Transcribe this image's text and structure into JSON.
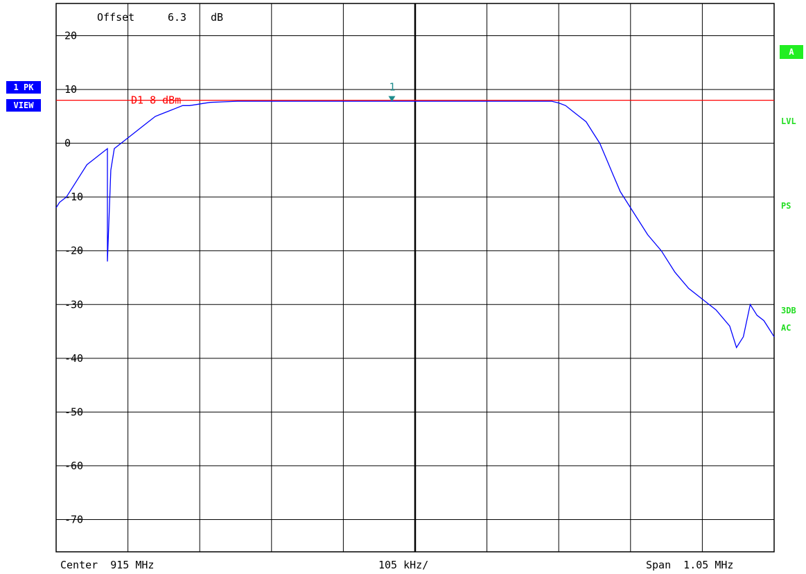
{
  "header": {
    "offset_label": "Offset",
    "offset_value": "6.3",
    "offset_unit": "dB"
  },
  "left_tags": {
    "trace": "1 PK",
    "mode": "VIEW"
  },
  "right_flags": {
    "a": "A",
    "lvl": "LVL",
    "ps": "PS",
    "db3": "3DB",
    "ac": "AC"
  },
  "footer": {
    "center": "Center  915 MHz",
    "per_div": "105 kHz/",
    "span": "Span  1.05 MHz"
  },
  "colors": {
    "trace": "#0000ff",
    "display_line": "#ff0000",
    "marker": "#1e8c8c",
    "flag_green": "#22dd22",
    "tag_blue": "#0000ff"
  },
  "chart_data": {
    "type": "line",
    "title": "",
    "xlabel": "",
    "ylabel": "",
    "center_mhz": 915,
    "span_mhz": 1.05,
    "xlim_mhz": [
      914.475,
      915.525
    ],
    "ylim": [
      -76,
      26
    ],
    "y_ticks": [
      20,
      10,
      0,
      -10,
      -20,
      -30,
      -40,
      -50,
      -60,
      -70
    ],
    "y_tick_labels": [
      "20",
      "10",
      "0",
      "-10",
      "-20",
      "-30",
      "-40",
      "-50",
      "-60",
      "-70"
    ],
    "grid": true,
    "display_line": {
      "label": "D1 8 dBm",
      "value": 8
    },
    "marker": {
      "label": "1",
      "x_mhz": 914.966,
      "y": 8
    },
    "series": [
      {
        "x_mhz": [
          914.475,
          914.48,
          914.49,
          914.5,
          914.51,
          914.52,
          914.53,
          914.54,
          914.55,
          914.55,
          914.555,
          914.56,
          914.57,
          914.58,
          914.59,
          914.6,
          914.61,
          914.62,
          914.63,
          914.64,
          914.65,
          914.66,
          914.67,
          914.68,
          914.69,
          914.7,
          914.72,
          914.74,
          914.76,
          914.78,
          914.8,
          914.85,
          914.9,
          914.95,
          915.0,
          915.05,
          915.1,
          915.15,
          915.2,
          915.21,
          915.22,
          915.23,
          915.24,
          915.25,
          915.26,
          915.27,
          915.28,
          915.29,
          915.3,
          915.32,
          915.34,
          915.36,
          915.38,
          915.4,
          915.42,
          915.44,
          915.46,
          915.47,
          915.48,
          915.49,
          915.5,
          915.51,
          915.52,
          915.525
        ],
        "values": [
          -12,
          -11,
          -10,
          -8,
          -6,
          -4,
          -3,
          -2,
          -1,
          -22,
          -5,
          -1,
          0,
          1,
          2,
          3,
          4,
          5,
          5.5,
          6,
          6.5,
          7,
          7,
          7.2,
          7.4,
          7.6,
          7.7,
          7.8,
          7.8,
          7.8,
          7.8,
          7.8,
          7.8,
          7.8,
          7.8,
          7.8,
          7.8,
          7.8,
          7.8,
          7.5,
          7,
          6,
          5,
          4,
          2,
          0,
          -3,
          -6,
          -9,
          -13,
          -17,
          -20,
          -24,
          -27,
          -29,
          -31,
          -34,
          -38,
          -36,
          -30,
          -32,
          -33,
          -35,
          -36
        ]
      }
    ]
  }
}
